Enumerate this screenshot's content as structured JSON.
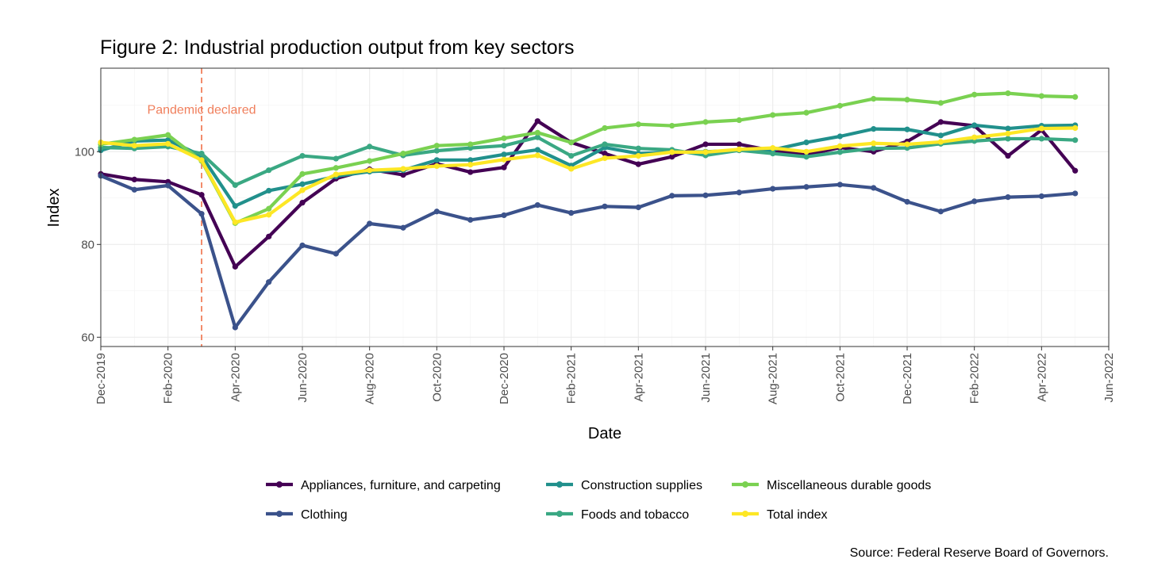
{
  "chart_data": {
    "type": "line",
    "title": "Figure 2: Industrial production output from key sectors",
    "xlabel": "Date",
    "ylabel": "Index",
    "caption": "Source: Federal Reserve Board of Governors.",
    "x_tick_labels": [
      "Dec-2019",
      "Feb-2020",
      "Apr-2020",
      "Jun-2020",
      "Aug-2020",
      "Oct-2020",
      "Dec-2020",
      "Feb-2021",
      "Apr-2021",
      "Jun-2021",
      "Aug-2021",
      "Oct-2021",
      "Dec-2021",
      "Feb-2022",
      "Apr-2022",
      "Jun-2022"
    ],
    "y_ticks": [
      60,
      80,
      100
    ],
    "ylim": [
      58,
      118
    ],
    "xlim_months": [
      0,
      30
    ],
    "grid": true,
    "legend_position": "bottom",
    "x": [
      "Dec-2019",
      "Jan-2020",
      "Feb-2020",
      "Mar-2020",
      "Apr-2020",
      "May-2020",
      "Jun-2020",
      "Jul-2020",
      "Aug-2020",
      "Sep-2020",
      "Oct-2020",
      "Nov-2020",
      "Dec-2020",
      "Jan-2021",
      "Feb-2021",
      "Mar-2021",
      "Apr-2021",
      "May-2021",
      "Jun-2021",
      "Jul-2021",
      "Aug-2021",
      "Sep-2021",
      "Oct-2021",
      "Nov-2021",
      "Dec-2021",
      "Jan-2022",
      "Feb-2022",
      "Mar-2022",
      "Apr-2022",
      "May-2022"
    ],
    "annotation": {
      "label": "Pandemic declared",
      "date": "Mar-2020",
      "color": "#f07f5c"
    },
    "series": [
      {
        "name": "Appliances, furniture, and carpeting",
        "color": "#440154",
        "values": [
          95.2,
          94.0,
          93.5,
          90.7,
          75.2,
          81.7,
          89.0,
          94.2,
          96.2,
          95.0,
          97.4,
          95.6,
          96.6,
          106.6,
          102.0,
          99.6,
          97.3,
          98.9,
          101.6,
          101.6,
          100.2,
          99.3,
          100.9,
          100.0,
          102.2,
          106.4,
          105.6,
          99.1,
          104.7,
          95.9
        ]
      },
      {
        "name": "Clothing",
        "color": "#3b528b",
        "values": [
          94.8,
          91.8,
          92.7,
          86.6,
          62.1,
          71.9,
          79.8,
          78.0,
          84.5,
          83.6,
          87.1,
          85.3,
          86.3,
          88.5,
          86.8,
          88.2,
          88.0,
          90.5,
          90.6,
          91.2,
          92.0,
          92.4,
          92.9,
          92.2,
          89.2,
          87.1,
          89.3,
          90.2,
          90.4,
          91.0
        ]
      },
      {
        "name": "Construction supplies",
        "color": "#21908c",
        "values": [
          100.3,
          102.3,
          102.5,
          99.1,
          88.3,
          91.6,
          93.0,
          94.7,
          95.7,
          96.0,
          98.2,
          98.2,
          99.4,
          100.4,
          97.0,
          100.9,
          99.6,
          99.9,
          100.0,
          100.3,
          100.4,
          102.0,
          103.3,
          104.9,
          104.8,
          103.5,
          105.7,
          105.0,
          105.6,
          105.7
        ]
      },
      {
        "name": "Foods and tobacco",
        "color": "#3aa883",
        "values": [
          100.9,
          100.7,
          101.1,
          99.6,
          92.8,
          96.0,
          99.1,
          98.5,
          101.1,
          99.2,
          100.2,
          100.8,
          101.3,
          103.1,
          99.1,
          101.6,
          100.7,
          100.4,
          99.2,
          100.3,
          99.6,
          98.9,
          99.9,
          100.7,
          100.8,
          101.7,
          102.3,
          102.8,
          102.8,
          102.5
        ]
      },
      {
        "name": "Miscellaneous durable goods",
        "color": "#7ad151",
        "values": [
          101.6,
          102.6,
          103.6,
          98.0,
          84.6,
          87.7,
          95.2,
          96.5,
          98.0,
          99.6,
          101.3,
          101.6,
          102.9,
          104.1,
          102.0,
          105.1,
          105.9,
          105.6,
          106.4,
          106.8,
          107.9,
          108.4,
          109.9,
          111.4,
          111.2,
          110.5,
          112.3,
          112.6,
          112.0,
          111.8
        ]
      },
      {
        "name": "Total index",
        "color": "#fde725",
        "values": [
          102.0,
          101.3,
          101.7,
          98.2,
          84.8,
          86.4,
          91.7,
          95.1,
          96.0,
          96.3,
          96.9,
          97.2,
          98.3,
          99.2,
          96.3,
          98.6,
          99.1,
          99.9,
          99.9,
          100.5,
          100.8,
          100.0,
          101.2,
          101.8,
          101.6,
          102.1,
          103.1,
          103.9,
          105.0,
          105.1
        ]
      }
    ]
  }
}
